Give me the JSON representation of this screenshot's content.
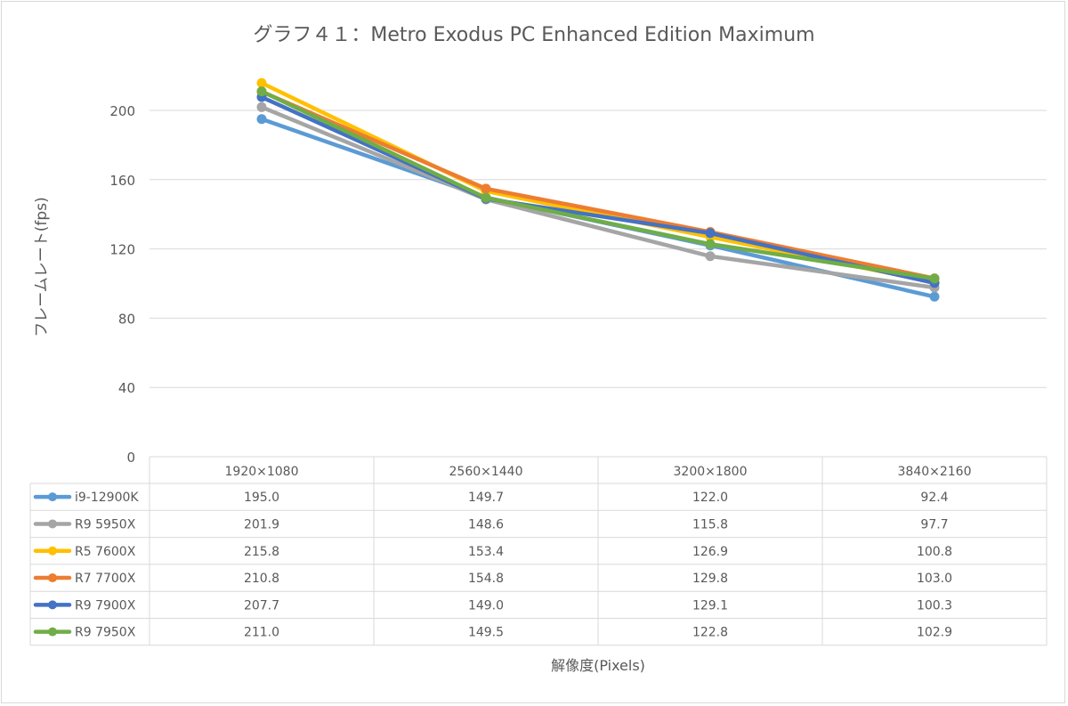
{
  "chart_data": {
    "type": "line",
    "title": "グラフ４１：Metro Exodus PC Enhanced Edition Maximum",
    "xlabel": "解像度(Pixels)",
    "ylabel": "フレームレート(fps)",
    "ylim": [
      0,
      220
    ],
    "yticks": [
      0,
      40,
      80,
      120,
      160,
      200
    ],
    "grid": true,
    "legend": "data-table",
    "categories": [
      "1920×1080",
      "2560×1440",
      "3200×1800",
      "3840×2160"
    ],
    "series": [
      {
        "name": "i9-12900K",
        "color": "#5b9bd5",
        "values": [
          195.0,
          149.7,
          122.0,
          92.4
        ],
        "labels": [
          "195.0",
          "149.7",
          "122.0",
          "92.4"
        ]
      },
      {
        "name": "R9 5950X",
        "color": "#a5a5a5",
        "values": [
          201.9,
          148.6,
          115.8,
          97.7
        ],
        "labels": [
          "201.9",
          "148.6",
          "115.8",
          "97.7"
        ]
      },
      {
        "name": "R5 7600X",
        "color": "#ffc000",
        "values": [
          215.8,
          153.4,
          126.9,
          100.8
        ],
        "labels": [
          "215.8",
          "153.4",
          "126.9",
          "100.8"
        ]
      },
      {
        "name": "R7 7700X",
        "color": "#ed7d31",
        "values": [
          210.8,
          154.8,
          129.8,
          103.0
        ],
        "labels": [
          "210.8",
          "154.8",
          "129.8",
          "103.0"
        ]
      },
      {
        "name": "R9 7900X",
        "color": "#4472c4",
        "values": [
          207.7,
          149.0,
          129.1,
          100.3
        ],
        "labels": [
          "207.7",
          "149.0",
          "129.1",
          "100.3"
        ]
      },
      {
        "name": "R9 7950X",
        "color": "#70ad47",
        "values": [
          211.0,
          149.5,
          122.8,
          102.9
        ],
        "labels": [
          "211.0",
          "149.5",
          "122.8",
          "102.9"
        ]
      }
    ]
  }
}
